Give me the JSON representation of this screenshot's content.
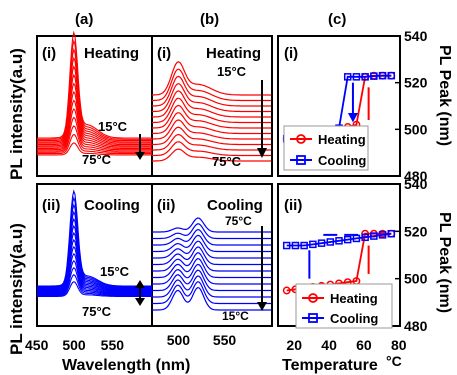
{
  "panel_labels": {
    "a": "(a)",
    "b": "(b)",
    "c": "(c)"
  },
  "subpanel_labels": {
    "top": "(i)",
    "bottom": "(ii)"
  },
  "axis": {
    "y_left": "PL intensity(a.u)",
    "y_right": "PL Peak (nm)",
    "x_wavelength": "Wavelength (nm)",
    "x_temperature_prefix": "Temperature ",
    "x_temperature_unit": "°C"
  },
  "text": {
    "heating": "Heating",
    "cooling": "Cooling",
    "t15": "15°C",
    "t75": "75°C",
    "t75_top": "75°C",
    "t15_bottom": "15°C",
    "t75_lower": "75°C"
  },
  "colors": {
    "heating": "#ff0000",
    "cooling": "#0000ff",
    "axis": "#000000"
  },
  "chart_data": [
    {
      "type": "line",
      "panel": "(a)(i)",
      "series_note": "PL spectra during heating, 15 °C to 75 °C",
      "x_ticks": [
        "450",
        "500",
        "550"
      ],
      "peak_nm": 498,
      "xlim": [
        450,
        600
      ]
    },
    {
      "type": "line",
      "panel": "(a)(ii)",
      "x_ticks": [
        "450",
        "500",
        "550"
      ],
      "peak_nm": 498,
      "xlim": [
        450,
        600
      ]
    },
    {
      "type": "line",
      "panel": "(b)(i)",
      "x_ticks": [
        "500",
        "550"
      ],
      "xlim": [
        470,
        600
      ]
    },
    {
      "type": "line",
      "panel": "(b)(ii)",
      "x_ticks": [
        "500",
        "550"
      ],
      "xlim": [
        470,
        600
      ]
    },
    {
      "type": "line",
      "panel": "(c)(i)",
      "xlim": [
        10,
        80
      ],
      "ylim": [
        480,
        540
      ],
      "y_ticks": [
        "480",
        "500",
        "520",
        "540"
      ],
      "series": [
        {
          "name": "Heating",
          "x": [
            15,
            20,
            25,
            30,
            35,
            40,
            45,
            50,
            55,
            60,
            65,
            70,
            75
          ],
          "y": [
            496,
            496.5,
            497,
            497.5,
            498,
            499,
            500,
            501,
            502,
            522.5,
            523,
            523,
            523
          ]
        },
        {
          "name": "Cooling",
          "x": [
            75,
            70,
            65,
            60,
            55,
            50,
            45,
            40,
            35,
            30,
            25,
            20,
            15
          ],
          "y": [
            523,
            523,
            522.8,
            522.5,
            522.5,
            522.5,
            500.5,
            499.5,
            498.5,
            497.5,
            497,
            496.5,
            496
          ]
        }
      ]
    },
    {
      "type": "line",
      "panel": "(c)(ii)",
      "xlim": [
        10,
        80
      ],
      "ylim": [
        480,
        540
      ],
      "x_ticks": [
        "20",
        "40",
        "60",
        "80"
      ],
      "y_ticks": [
        "480",
        "500",
        "520",
        "540"
      ],
      "series": [
        {
          "name": "Heating",
          "x": [
            15,
            20,
            25,
            30,
            35,
            40,
            45,
            50,
            55,
            60,
            65,
            70,
            75
          ],
          "y": [
            495,
            495.5,
            496,
            496.5,
            497,
            497.5,
            498,
            498.5,
            499,
            519,
            519,
            519,
            519
          ]
        },
        {
          "name": "Cooling",
          "x": [
            75,
            70,
            65,
            60,
            55,
            50,
            45,
            40,
            35,
            30,
            25,
            20,
            15
          ],
          "y": [
            519,
            518.5,
            518,
            517.5,
            517,
            516.5,
            516,
            515.5,
            515,
            514.5,
            514,
            514,
            514
          ]
        }
      ]
    }
  ]
}
